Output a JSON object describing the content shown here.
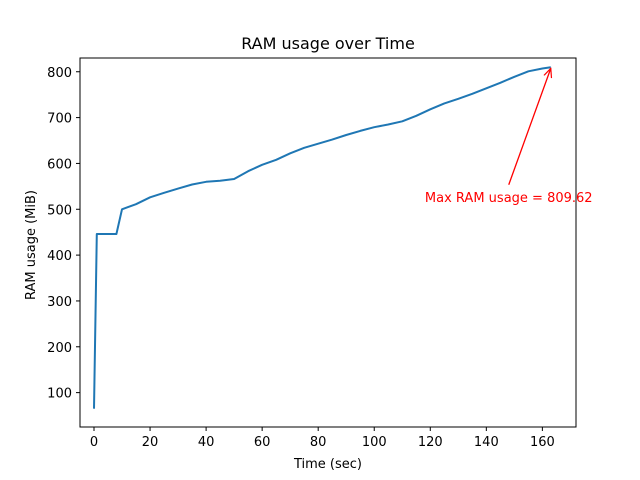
{
  "chart_data": {
    "type": "line",
    "title": "RAM usage over Time",
    "xlabel": "Time (sec)",
    "ylabel": "RAM usage (MiB)",
    "xlim": [
      -5,
      172
    ],
    "ylim": [
      25,
      830
    ],
    "x_ticks": [
      0,
      20,
      40,
      60,
      80,
      100,
      120,
      140,
      160
    ],
    "y_ticks": [
      100,
      200,
      300,
      400,
      500,
      600,
      700,
      800
    ],
    "grid": false,
    "series": [
      {
        "color": "#1f77b4",
        "x": [
          0,
          1,
          2,
          5,
          8,
          10,
          15,
          20,
          25,
          30,
          35,
          40,
          45,
          50,
          55,
          60,
          65,
          70,
          75,
          80,
          85,
          90,
          95,
          100,
          105,
          110,
          115,
          120,
          125,
          130,
          135,
          140,
          145,
          150,
          155,
          160,
          163
        ],
        "y": [
          65,
          446,
          446,
          446,
          446,
          500,
          511,
          526,
          536,
          545,
          554,
          560,
          562,
          566,
          583,
          597,
          608,
          622,
          634,
          643,
          652,
          662,
          671,
          679,
          685,
          692,
          704,
          718,
          731,
          741,
          752,
          764,
          776,
          789,
          801,
          807,
          809.62
        ]
      }
    ],
    "annotation": {
      "text": "Max RAM usage = 809.62",
      "color": "#ff0000",
      "point": [
        163,
        809.62
      ],
      "text_at": [
        148,
        512
      ]
    }
  }
}
